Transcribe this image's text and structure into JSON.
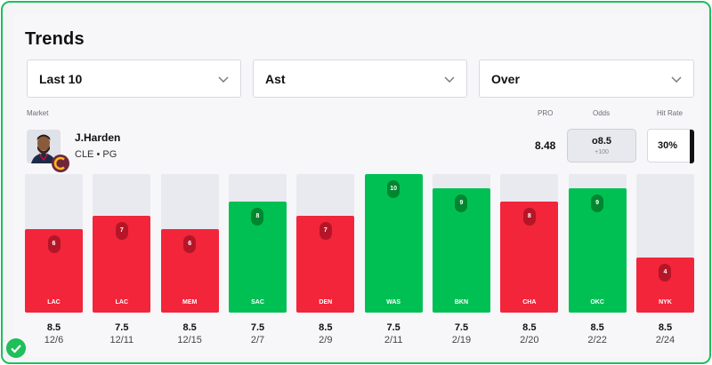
{
  "title": "Trends",
  "filters": [
    {
      "label": "Last 10"
    },
    {
      "label": "Ast"
    },
    {
      "label": "Over"
    }
  ],
  "headers": {
    "market": "Market",
    "pro": "PRO",
    "odds": "Odds",
    "hit_rate": "Hit Rate"
  },
  "player": {
    "name": "J.Harden",
    "team_pos": "CLE • PG"
  },
  "stats": {
    "pro": "8.48",
    "odds_line": "o8.5",
    "odds_price": "+100",
    "hit_rate": "30%",
    "hit_rate_value": 30
  },
  "chart_data": {
    "type": "bar",
    "scale_max": 10,
    "games": [
      {
        "opp": "LAC",
        "value": 6,
        "line": "8.5",
        "date": "12/6",
        "result": "under"
      },
      {
        "opp": "LAC",
        "value": 7,
        "line": "7.5",
        "date": "12/11",
        "result": "under"
      },
      {
        "opp": "MEM",
        "value": 6,
        "line": "8.5",
        "date": "12/15",
        "result": "under"
      },
      {
        "opp": "SAC",
        "value": 8,
        "line": "7.5",
        "date": "2/7",
        "result": "over"
      },
      {
        "opp": "DEN",
        "value": 7,
        "line": "8.5",
        "date": "2/9",
        "result": "under"
      },
      {
        "opp": "WAS",
        "value": 10,
        "line": "7.5",
        "date": "2/11",
        "result": "over"
      },
      {
        "opp": "BKN",
        "value": 9,
        "line": "7.5",
        "date": "2/19",
        "result": "over"
      },
      {
        "opp": "CHA",
        "value": 8,
        "line": "8.5",
        "date": "2/20",
        "result": "under"
      },
      {
        "opp": "OKC",
        "value": 9,
        "line": "8.5",
        "date": "2/22",
        "result": "over"
      },
      {
        "opp": "NYK",
        "value": 4,
        "line": "8.5",
        "date": "2/24",
        "result": "under"
      }
    ]
  },
  "colors": {
    "over": "#00c054",
    "under": "#f2253a",
    "accent": "#1fbf5a"
  },
  "icons": {
    "dropdown": "chevron-down-icon",
    "status": "check-circle-icon"
  }
}
